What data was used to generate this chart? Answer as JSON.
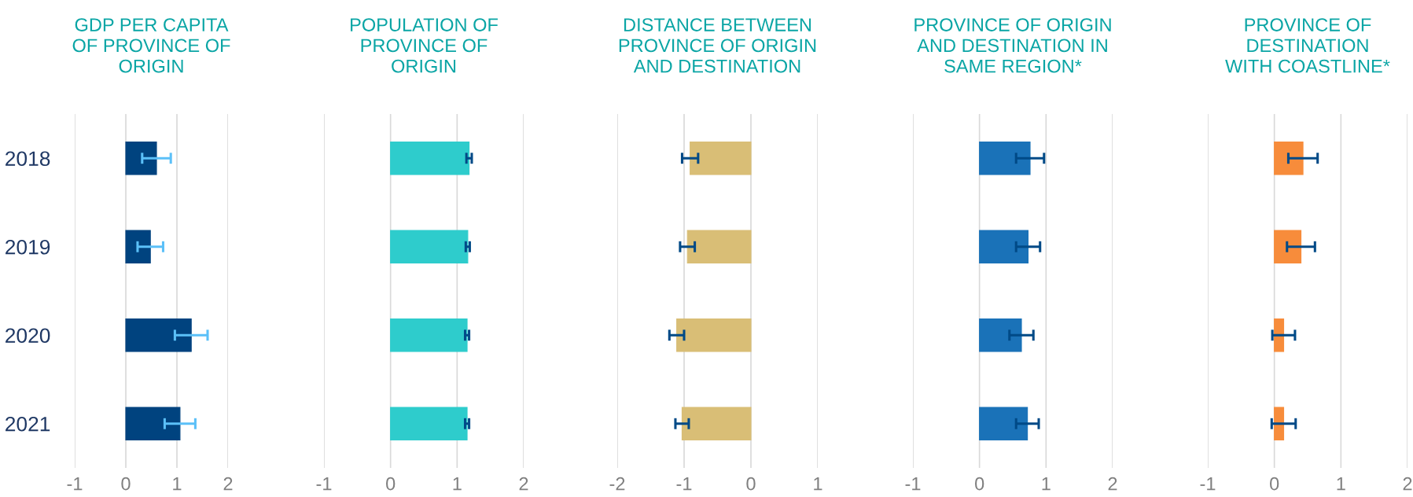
{
  "chart_data": [
    {
      "type": "bar",
      "orientation": "horizontal",
      "title": "GDP PER CAPITA\nOF PROVINCE OF\nORIGIN",
      "categories": [
        "2018",
        "2019",
        "2020",
        "2021"
      ],
      "values": [
        0.6,
        0.48,
        1.28,
        1.06
      ],
      "errors": [
        0.28,
        0.25,
        0.32,
        0.3
      ],
      "color": "#00437f",
      "xlim": [
        -1,
        2
      ],
      "xticks": [
        -1,
        0,
        1,
        2
      ],
      "grid": "x"
    },
    {
      "type": "bar",
      "orientation": "horizontal",
      "title": "POPULATION OF\nPROVINCE OF\nORIGIN",
      "categories": [
        "2018",
        "2019",
        "2020",
        "2021"
      ],
      "values": [
        1.18,
        1.16,
        1.15,
        1.15
      ],
      "errors": [
        0.04,
        0.03,
        0.03,
        0.03
      ],
      "color": "#2ecccc",
      "xlim": [
        -1,
        2
      ],
      "xticks": [
        -1,
        0,
        1,
        2
      ],
      "grid": "x",
      "tick_labels": "x"
    },
    {
      "type": "bar",
      "orientation": "horizontal",
      "title": "DISTANCE BETWEEN\nPROVINCE OF ORIGIN\nAND DESTINATION",
      "categories": [
        "2018",
        "2019",
        "2020",
        "2021"
      ],
      "values": [
        -0.91,
        -0.95,
        -1.11,
        -1.03
      ],
      "errors": [
        0.12,
        0.11,
        0.11,
        0.1
      ],
      "color": "#d9be76",
      "xlim": [
        -2,
        1
      ],
      "xticks": [
        -2,
        -1,
        0,
        1
      ],
      "grid": "x",
      "tick_labels": "x"
    },
    {
      "type": "bar",
      "orientation": "horizontal",
      "title": "PROVINCE OF ORIGIN\nAND DESTINATION IN\nSAME REGION*",
      "categories": [
        "2018",
        "2019",
        "2020",
        "2021"
      ],
      "values": [
        0.76,
        0.73,
        0.63,
        0.72
      ],
      "errors": [
        0.21,
        0.18,
        0.18,
        0.17
      ],
      "color": "#1a72b8",
      "xlim": [
        -1,
        2
      ],
      "xticks": [
        -1,
        0,
        1,
        2
      ],
      "grid": "x",
      "tick_labels": "x"
    },
    {
      "type": "bar",
      "orientation": "horizontal",
      "title": "PROVINCE OF\nDESTINATION\nWITH COASTLINE*",
      "categories": [
        "2018",
        "2019",
        "2020",
        "2021"
      ],
      "values": [
        0.43,
        0.4,
        0.14,
        0.14
      ],
      "errors": [
        0.22,
        0.21,
        0.17,
        0.18
      ],
      "color": "#f78c3b",
      "xlim": [
        -1,
        2
      ],
      "xticks": [
        -1,
        0,
        1,
        2
      ],
      "grid": "x",
      "tick_labels": "x"
    }
  ]
}
